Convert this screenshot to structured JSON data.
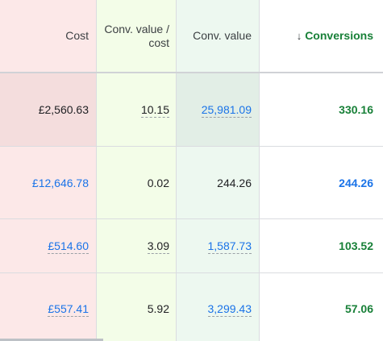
{
  "colors": {
    "cost_column_bg": "#fce8e8",
    "conv_value_cost_column_bg": "#f3fde8",
    "conv_value_column_bg": "#edf8f0",
    "link_blue": "#1a73e8",
    "conversions_green": "#188038"
  },
  "header": {
    "cost": "Cost",
    "conv_value_per_cost": "Conv. value / cost",
    "conv_value": "Conv. value",
    "conversions": "Conversions",
    "sort_icon": "arrow-down-icon"
  },
  "rows": [
    {
      "cost": "£2,560.63",
      "conv_value_per_cost": "10.15",
      "conv_value": "25,981.09",
      "conversions": "330.16"
    },
    {
      "cost": "£12,646.78",
      "conv_value_per_cost": "0.02",
      "conv_value": "244.26",
      "conversions": "244.26"
    },
    {
      "cost": "£514.60",
      "conv_value_per_cost": "3.09",
      "conv_value": "1,587.73",
      "conversions": "103.52"
    },
    {
      "cost": "£557.41",
      "conv_value_per_cost": "5.92",
      "conv_value": "3,299.43",
      "conversions": "57.06"
    }
  ]
}
